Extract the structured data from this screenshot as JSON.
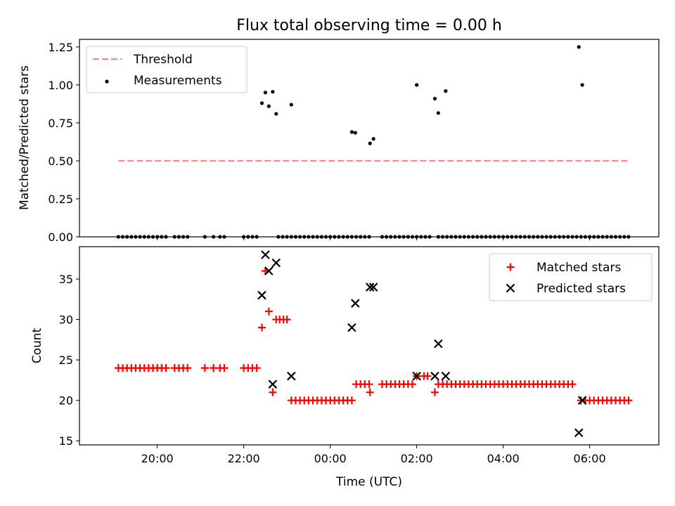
{
  "chart_data": [
    {
      "type": "scatter",
      "title": "Flux total observing time = 0.00 h",
      "ylabel": "Matched/Predicted stars",
      "ylim": [
        0,
        1.3
      ],
      "yticks": [
        "0.00",
        "0.25",
        "0.50",
        "0.75",
        "1.00",
        "1.25"
      ],
      "legend": {
        "placement": "top-left",
        "entries": [
          "Threshold",
          "Measurements"
        ]
      },
      "threshold": {
        "name": "Threshold",
        "value": 0.5,
        "x_start": 19.1,
        "x_end": 30.9,
        "color": "#ff7f7f"
      },
      "series": [
        {
          "name": "Measurements",
          "color": "#000000",
          "zero_x": [
            19.1,
            19.2,
            19.3,
            19.4,
            19.5,
            19.6,
            19.7,
            19.8,
            19.9,
            20.0,
            20.1,
            20.2,
            20.4,
            20.5,
            20.6,
            20.7,
            21.1,
            21.3,
            21.45,
            21.55,
            22.0,
            22.1,
            22.2,
            22.3,
            22.8,
            22.9,
            23.0,
            23.1,
            23.2,
            23.3,
            23.4,
            23.5,
            23.6,
            23.7,
            23.8,
            23.9,
            24.0,
            24.1,
            24.2,
            24.3,
            24.4,
            24.5,
            24.6,
            24.7,
            24.8,
            24.9,
            25.2,
            25.3,
            25.4,
            25.5,
            25.6,
            25.7,
            25.8,
            25.9,
            26.0,
            26.1,
            26.2,
            26.3,
            26.5,
            26.6,
            26.7,
            26.8,
            26.9,
            27.0,
            27.1,
            27.2,
            27.3,
            27.4,
            27.5,
            27.6,
            27.7,
            27.8,
            27.9,
            28.0,
            28.1,
            28.2,
            28.3,
            28.4,
            28.5,
            28.6,
            28.7,
            28.8,
            28.9,
            29.0,
            29.1,
            29.2,
            29.3,
            29.4,
            29.5,
            29.6,
            29.7,
            29.8,
            29.9,
            30.0,
            30.1,
            30.2,
            30.3,
            30.4,
            30.5,
            30.6,
            30.7,
            30.8,
            30.9
          ],
          "points": [
            [
              22.42,
              0.88
            ],
            [
              22.5,
              0.95
            ],
            [
              22.58,
              0.86
            ],
            [
              22.67,
              0.955
            ],
            [
              22.75,
              0.81
            ],
            [
              23.1,
              0.87
            ],
            [
              24.5,
              0.69
            ],
            [
              24.58,
              0.685
            ],
            [
              24.92,
              0.615
            ],
            [
              25.0,
              0.645
            ],
            [
              26.0,
              1.0
            ],
            [
              26.42,
              0.91
            ],
            [
              26.5,
              0.815
            ],
            [
              26.67,
              0.96
            ],
            [
              29.75,
              1.25
            ],
            [
              29.83,
              1.0
            ]
          ]
        }
      ]
    },
    {
      "type": "scatter",
      "xlabel": "Time (UTC)",
      "ylabel": "Count",
      "ylim": [
        14.5,
        39
      ],
      "xlim": [
        18.2,
        31.6
      ],
      "yticks": [
        "15",
        "20",
        "25",
        "30",
        "35"
      ],
      "xticks": [
        {
          "value": 20,
          "label": "20:00"
        },
        {
          "value": 22,
          "label": "22:00"
        },
        {
          "value": 24,
          "label": "00:00"
        },
        {
          "value": 26,
          "label": "02:00"
        },
        {
          "value": 28,
          "label": "04:00"
        },
        {
          "value": 30,
          "label": "06:00"
        }
      ],
      "legend": {
        "placement": "top-right",
        "entries": [
          "Matched stars",
          "Predicted stars"
        ]
      },
      "series": [
        {
          "name": "Matched stars",
          "color": "#ff0000",
          "groups": [
            {
              "value": 24,
              "x": [
                19.1,
                19.2,
                19.3,
                19.4,
                19.5,
                19.6,
                19.7,
                19.8,
                19.9,
                20.0,
                20.1,
                20.2,
                20.4,
                20.5,
                20.6,
                20.7,
                21.1,
                21.3,
                21.45,
                21.55,
                22.0,
                22.1,
                22.2,
                22.3
              ]
            },
            {
              "value": 22,
              "x": [
                24.6,
                24.7,
                24.8,
                24.9,
                25.2,
                25.3,
                25.4,
                25.5,
                25.6,
                25.7,
                25.8,
                25.9,
                26.6,
                26.7,
                26.8,
                26.9,
                27.0,
                27.1,
                27.2,
                27.3,
                27.4,
                27.5,
                27.6,
                27.7,
                27.8,
                27.9,
                28.0,
                28.1,
                28.2,
                28.3,
                28.4,
                28.5,
                28.6,
                28.7,
                28.8,
                28.9,
                29.0,
                29.1,
                29.2,
                29.3,
                29.4,
                29.5,
                29.6
              ]
            },
            {
              "value": 20,
              "x": [
                23.1,
                23.2,
                23.3,
                23.4,
                23.5,
                23.6,
                23.7,
                23.8,
                23.9,
                24.0,
                24.1,
                24.2,
                24.3,
                24.4,
                24.5,
                29.8,
                29.9,
                30.0,
                30.1,
                30.2,
                30.3,
                30.4,
                30.5,
                30.6,
                30.7,
                30.8,
                30.9
              ]
            }
          ],
          "points": [
            [
              22.42,
              29
            ],
            [
              22.5,
              36
            ],
            [
              22.58,
              31
            ],
            [
              22.67,
              21
            ],
            [
              22.75,
              30
            ],
            [
              22.83,
              30
            ],
            [
              22.92,
              30
            ],
            [
              23.0,
              30
            ],
            [
              24.92,
              21
            ],
            [
              26.0,
              23
            ],
            [
              26.17,
              23
            ],
            [
              26.25,
              23
            ],
            [
              26.42,
              21
            ],
            [
              26.5,
              22
            ]
          ]
        },
        {
          "name": "Predicted stars",
          "color": "#000000",
          "points": [
            [
              22.42,
              33
            ],
            [
              22.5,
              38
            ],
            [
              22.58,
              36
            ],
            [
              22.67,
              22
            ],
            [
              22.75,
              37
            ],
            [
              23.1,
              23
            ],
            [
              24.5,
              29
            ],
            [
              24.58,
              32
            ],
            [
              24.92,
              34
            ],
            [
              25.0,
              34
            ],
            [
              26.0,
              23
            ],
            [
              26.42,
              23
            ],
            [
              26.5,
              27
            ],
            [
              26.67,
              23
            ],
            [
              29.75,
              16
            ],
            [
              29.83,
              20
            ]
          ]
        }
      ]
    }
  ]
}
